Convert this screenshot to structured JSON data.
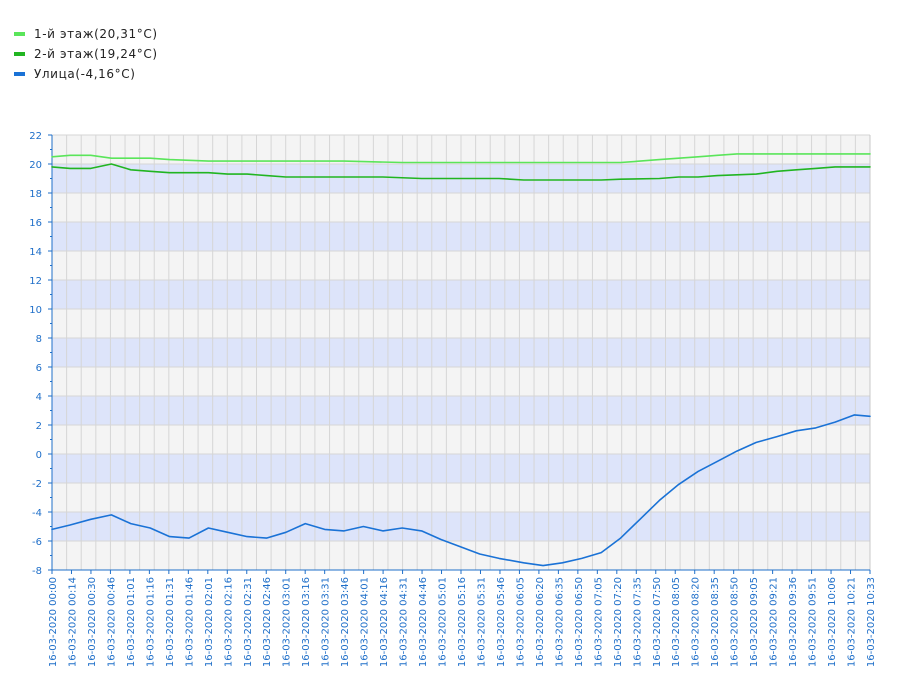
{
  "legend": [
    {
      "name": "1-й этаж",
      "current": "(20,31°C)",
      "color": "#5ae55a"
    },
    {
      "name": "2-й этаж",
      "current": "(19,24°C)",
      "color": "#21b521"
    },
    {
      "name": "Улица",
      "current": "(-4,16°C)",
      "color": "#1a72d6"
    }
  ],
  "chart_data": {
    "type": "line",
    "title": "",
    "xlabel": "",
    "ylabel": "",
    "ylim": [
      -8,
      22
    ],
    "y_ticks": [
      22,
      20,
      18,
      16,
      14,
      12,
      10,
      8,
      6,
      4,
      2,
      0,
      -2,
      -4,
      -6,
      -8
    ],
    "x_range": [
      "16-03-2020 00:00",
      "16-03-2020 10:33"
    ],
    "x_tick_labels": [
      "16-03-2020 00:00",
      "16-03-2020 00:14",
      "16-03-2020 00:30",
      "16-03-2020 00:46",
      "16-03-2020 01:01",
      "16-03-2020 01:16",
      "16-03-2020 01:31",
      "16-03-2020 01:46",
      "16-03-2020 02:01",
      "16-03-2020 02:16",
      "16-03-2020 02:31",
      "16-03-2020 02:46",
      "16-03-2020 03:01",
      "16-03-2020 03:16",
      "16-03-2020 03:31",
      "16-03-2020 03:46",
      "16-03-2020 04:01",
      "16-03-2020 04:16",
      "16-03-2020 04:31",
      "16-03-2020 04:46",
      "16-03-2020 05:01",
      "16-03-2020 05:16",
      "16-03-2020 05:31",
      "16-03-2020 05:46",
      "16-03-2020 06:05",
      "16-03-2020 06:20",
      "16-03-2020 06:35",
      "16-03-2020 06:50",
      "16-03-2020 07:05",
      "16-03-2020 07:20",
      "16-03-2020 07:35",
      "16-03-2020 07:50",
      "16-03-2020 08:05",
      "16-03-2020 08:20",
      "16-03-2020 08:35",
      "16-03-2020 08:50",
      "16-03-2020 09:05",
      "16-03-2020 09:21",
      "16-03-2020 09:36",
      "16-03-2020 09:51",
      "16-03-2020 10:06",
      "16-03-2020 10:21",
      "16-03-2020 10:33"
    ],
    "band_colors": [
      "#f4f4f4",
      "#dde4fa"
    ],
    "grid": true,
    "legend_position": "top-left",
    "series": [
      {
        "name": "1-й этаж",
        "color": "#5ae55a",
        "points": [
          [
            "16-03-2020 00:00",
            20.5
          ],
          [
            "16-03-2020 00:14",
            20.6
          ],
          [
            "16-03-2020 00:30",
            20.6
          ],
          [
            "16-03-2020 00:46",
            20.4
          ],
          [
            "16-03-2020 01:16",
            20.4
          ],
          [
            "16-03-2020 01:31",
            20.3
          ],
          [
            "16-03-2020 02:01",
            20.2
          ],
          [
            "16-03-2020 03:46",
            20.2
          ],
          [
            "16-03-2020 04:31",
            20.1
          ],
          [
            "16-03-2020 05:01",
            20.1
          ],
          [
            "16-03-2020 06:05",
            20.1
          ],
          [
            "16-03-2020 07:20",
            20.1
          ],
          [
            "16-03-2020 07:35",
            20.2
          ],
          [
            "16-03-2020 07:50",
            20.3
          ],
          [
            "16-03-2020 08:05",
            20.4
          ],
          [
            "16-03-2020 08:20",
            20.5
          ],
          [
            "16-03-2020 08:35",
            20.6
          ],
          [
            "16-03-2020 08:50",
            20.7
          ],
          [
            "16-03-2020 09:36",
            20.7
          ],
          [
            "16-03-2020 10:33",
            20.7
          ]
        ]
      },
      {
        "name": "2-й этаж",
        "color": "#21b521",
        "points": [
          [
            "16-03-2020 00:00",
            19.8
          ],
          [
            "16-03-2020 00:14",
            19.7
          ],
          [
            "16-03-2020 00:30",
            19.7
          ],
          [
            "16-03-2020 00:46",
            20.0
          ],
          [
            "16-03-2020 01:01",
            19.6
          ],
          [
            "16-03-2020 01:16",
            19.5
          ],
          [
            "16-03-2020 01:31",
            19.4
          ],
          [
            "16-03-2020 02:01",
            19.4
          ],
          [
            "16-03-2020 02:16",
            19.3
          ],
          [
            "16-03-2020 02:31",
            19.3
          ],
          [
            "16-03-2020 02:46",
            19.2
          ],
          [
            "16-03-2020 03:01",
            19.1
          ],
          [
            "16-03-2020 04:16",
            19.1
          ],
          [
            "16-03-2020 04:46",
            19.0
          ],
          [
            "16-03-2020 05:46",
            19.0
          ],
          [
            "16-03-2020 06:05",
            18.9
          ],
          [
            "16-03-2020 07:05",
            18.9
          ],
          [
            "16-03-2020 07:20",
            18.95
          ],
          [
            "16-03-2020 07:50",
            19.0
          ],
          [
            "16-03-2020 08:05",
            19.1
          ],
          [
            "16-03-2020 08:20",
            19.1
          ],
          [
            "16-03-2020 08:35",
            19.2
          ],
          [
            "16-03-2020 09:05",
            19.3
          ],
          [
            "16-03-2020 09:21",
            19.5
          ],
          [
            "16-03-2020 09:36",
            19.6
          ],
          [
            "16-03-2020 09:51",
            19.7
          ],
          [
            "16-03-2020 10:06",
            19.8
          ],
          [
            "16-03-2020 10:21",
            19.8
          ],
          [
            "16-03-2020 10:33",
            19.8
          ]
        ]
      },
      {
        "name": "Улица",
        "color": "#1a72d6",
        "points": [
          [
            "16-03-2020 00:00",
            -5.2
          ],
          [
            "16-03-2020 00:14",
            -4.9
          ],
          [
            "16-03-2020 00:30",
            -4.5
          ],
          [
            "16-03-2020 00:46",
            -4.2
          ],
          [
            "16-03-2020 01:01",
            -4.8
          ],
          [
            "16-03-2020 01:16",
            -5.1
          ],
          [
            "16-03-2020 01:31",
            -5.7
          ],
          [
            "16-03-2020 01:46",
            -5.8
          ],
          [
            "16-03-2020 02:01",
            -5.1
          ],
          [
            "16-03-2020 02:16",
            -5.4
          ],
          [
            "16-03-2020 02:31",
            -5.7
          ],
          [
            "16-03-2020 02:46",
            -5.8
          ],
          [
            "16-03-2020 03:01",
            -5.4
          ],
          [
            "16-03-2020 03:16",
            -4.8
          ],
          [
            "16-03-2020 03:31",
            -5.2
          ],
          [
            "16-03-2020 03:46",
            -5.3
          ],
          [
            "16-03-2020 04:01",
            -5.0
          ],
          [
            "16-03-2020 04:16",
            -5.3
          ],
          [
            "16-03-2020 04:31",
            -5.1
          ],
          [
            "16-03-2020 04:46",
            -5.3
          ],
          [
            "16-03-2020 05:01",
            -5.9
          ],
          [
            "16-03-2020 05:16",
            -6.4
          ],
          [
            "16-03-2020 05:31",
            -6.9
          ],
          [
            "16-03-2020 05:46",
            -7.2
          ],
          [
            "16-03-2020 06:05",
            -7.5
          ],
          [
            "16-03-2020 06:20",
            -7.7
          ],
          [
            "16-03-2020 06:35",
            -7.5
          ],
          [
            "16-03-2020 06:50",
            -7.2
          ],
          [
            "16-03-2020 07:05",
            -6.8
          ],
          [
            "16-03-2020 07:20",
            -5.8
          ],
          [
            "16-03-2020 07:35",
            -4.5
          ],
          [
            "16-03-2020 07:50",
            -3.2
          ],
          [
            "16-03-2020 08:05",
            -2.1
          ],
          [
            "16-03-2020 08:20",
            -1.2
          ],
          [
            "16-03-2020 08:35",
            -0.5
          ],
          [
            "16-03-2020 08:50",
            0.2
          ],
          [
            "16-03-2020 09:05",
            0.8
          ],
          [
            "16-03-2020 09:21",
            1.2
          ],
          [
            "16-03-2020 09:36",
            1.6
          ],
          [
            "16-03-2020 09:51",
            1.8
          ],
          [
            "16-03-2020 10:06",
            2.2
          ],
          [
            "16-03-2020 10:21",
            2.7
          ],
          [
            "16-03-2020 10:33",
            2.6
          ]
        ]
      }
    ]
  }
}
